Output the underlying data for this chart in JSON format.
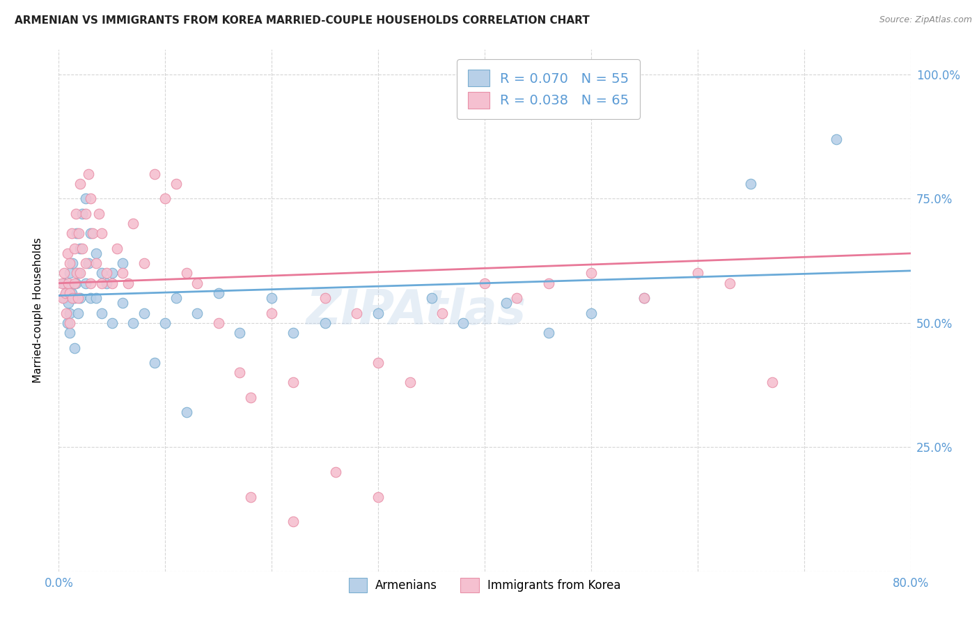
{
  "title": "ARMENIAN VS IMMIGRANTS FROM KOREA MARRIED-COUPLE HOUSEHOLDS CORRELATION CHART",
  "source": "Source: ZipAtlas.com",
  "ylabel": "Married-couple Households",
  "xlim": [
    0,
    0.8
  ],
  "ylim": [
    0,
    1.05
  ],
  "blue_scatter_color": "#b8d0e8",
  "pink_scatter_color": "#f5c0d0",
  "blue_edge_color": "#7aaed0",
  "pink_edge_color": "#e890a8",
  "blue_line_color": "#6aaad8",
  "pink_line_color": "#e87898",
  "watermark": "ZIPAtlas",
  "watermark_color": "#b8d0e8",
  "background_color": "#ffffff",
  "grid_color": "#cccccc",
  "title_color": "#222222",
  "axis_label_color": "#5b9bd5",
  "blue_x": [
    0.005,
    0.005,
    0.007,
    0.008,
    0.009,
    0.01,
    0.01,
    0.01,
    0.01,
    0.012,
    0.013,
    0.015,
    0.015,
    0.016,
    0.017,
    0.018,
    0.019,
    0.02,
    0.02,
    0.022,
    0.025,
    0.025,
    0.028,
    0.03,
    0.03,
    0.035,
    0.035,
    0.04,
    0.04,
    0.045,
    0.05,
    0.05,
    0.06,
    0.06,
    0.07,
    0.08,
    0.09,
    0.1,
    0.11,
    0.12,
    0.13,
    0.15,
    0.17,
    0.2,
    0.22,
    0.25,
    0.3,
    0.35,
    0.38,
    0.42,
    0.46,
    0.5,
    0.55,
    0.65,
    0.73
  ],
  "blue_y": [
    0.55,
    0.58,
    0.56,
    0.5,
    0.54,
    0.52,
    0.57,
    0.6,
    0.48,
    0.56,
    0.62,
    0.55,
    0.45,
    0.58,
    0.68,
    0.52,
    0.6,
    0.55,
    0.65,
    0.72,
    0.58,
    0.75,
    0.62,
    0.55,
    0.68,
    0.55,
    0.64,
    0.52,
    0.6,
    0.58,
    0.5,
    0.6,
    0.54,
    0.62,
    0.5,
    0.52,
    0.42,
    0.5,
    0.55,
    0.32,
    0.52,
    0.56,
    0.48,
    0.55,
    0.48,
    0.5,
    0.52,
    0.55,
    0.5,
    0.54,
    0.48,
    0.52,
    0.55,
    0.78,
    0.87
  ],
  "pink_x": [
    0.003,
    0.004,
    0.005,
    0.006,
    0.007,
    0.008,
    0.009,
    0.01,
    0.01,
    0.01,
    0.012,
    0.013,
    0.015,
    0.015,
    0.016,
    0.017,
    0.018,
    0.019,
    0.02,
    0.02,
    0.022,
    0.025,
    0.025,
    0.028,
    0.03,
    0.03,
    0.032,
    0.035,
    0.038,
    0.04,
    0.04,
    0.045,
    0.05,
    0.055,
    0.06,
    0.065,
    0.07,
    0.08,
    0.09,
    0.1,
    0.11,
    0.12,
    0.13,
    0.15,
    0.17,
    0.18,
    0.2,
    0.22,
    0.25,
    0.28,
    0.3,
    0.33,
    0.36,
    0.4,
    0.43,
    0.46,
    0.5,
    0.55,
    0.6,
    0.63,
    0.67,
    0.18,
    0.22,
    0.26,
    0.3
  ],
  "pink_y": [
    0.58,
    0.55,
    0.6,
    0.56,
    0.52,
    0.64,
    0.58,
    0.56,
    0.62,
    0.5,
    0.68,
    0.55,
    0.58,
    0.65,
    0.72,
    0.6,
    0.55,
    0.68,
    0.6,
    0.78,
    0.65,
    0.62,
    0.72,
    0.8,
    0.58,
    0.75,
    0.68,
    0.62,
    0.72,
    0.58,
    0.68,
    0.6,
    0.58,
    0.65,
    0.6,
    0.58,
    0.7,
    0.62,
    0.8,
    0.75,
    0.78,
    0.6,
    0.58,
    0.5,
    0.4,
    0.35,
    0.52,
    0.38,
    0.55,
    0.52,
    0.42,
    0.38,
    0.52,
    0.58,
    0.55,
    0.58,
    0.6,
    0.55,
    0.6,
    0.58,
    0.38,
    0.15,
    0.1,
    0.2,
    0.15
  ]
}
